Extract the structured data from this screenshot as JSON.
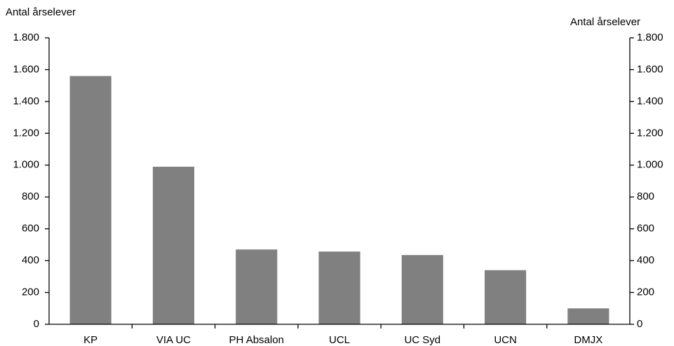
{
  "chart_data": {
    "type": "bar",
    "y_label": "Antal årselever",
    "y2_label": "Antal årselever",
    "categories": [
      "KP",
      "VIA UC",
      "PH Absalon",
      "UCL",
      "UC Syd",
      "UCN",
      "DMJX"
    ],
    "values": [
      1560,
      990,
      470,
      457,
      435,
      340,
      100
    ],
    "color": "#808080",
    "ylim": [
      0,
      1800
    ],
    "yticks": [
      0,
      200,
      400,
      600,
      800,
      {
        "value": 1000,
        "label": "1.000"
      },
      {
        "value": 1200,
        "label": "1.200"
      },
      {
        "value": 1400,
        "label": "1.400"
      },
      {
        "value": 1600,
        "label": "1.600"
      },
      {
        "value": 1800,
        "label": "1.800"
      }
    ],
    "y2lim": [
      0,
      1800
    ],
    "y2ticks": [
      0,
      200,
      400,
      600,
      800,
      {
        "value": 1000,
        "label": "1.000"
      },
      {
        "value": 1200,
        "label": "1.200"
      },
      {
        "value": 1400,
        "label": "1.400"
      },
      {
        "value": 1600,
        "label": "1.600"
      },
      {
        "value": 1800,
        "label": "1.800"
      }
    ],
    "grid": false
  }
}
